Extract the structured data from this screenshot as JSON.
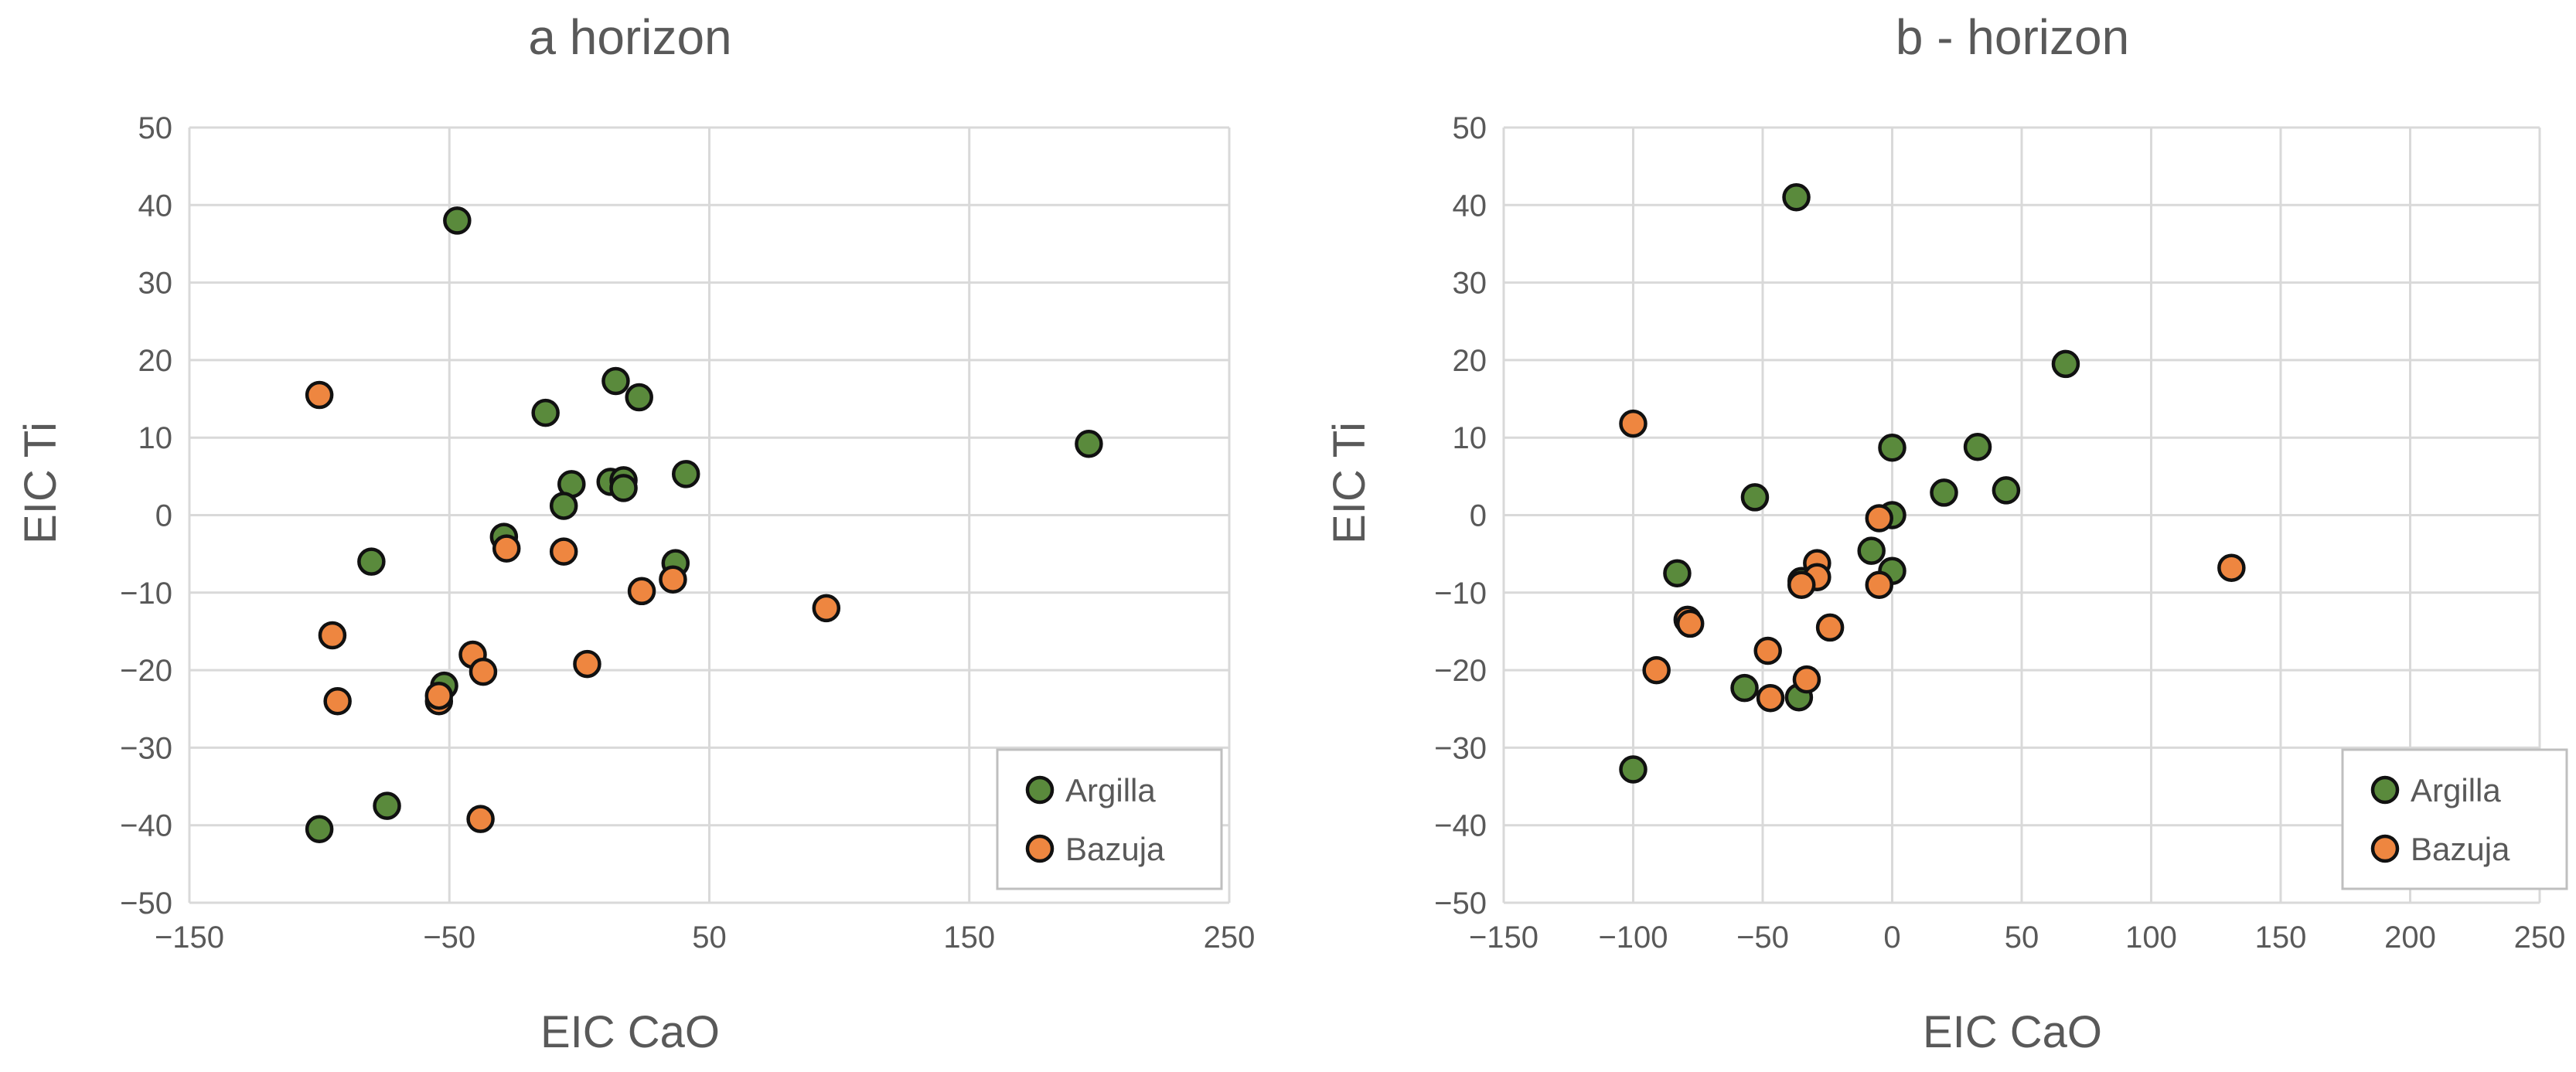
{
  "colors": {
    "argilla": "#5a8a3c",
    "bazuja": "#ee8640",
    "grid": "#d9d9d9",
    "text": "#595959"
  },
  "chart_data": [
    {
      "type": "scatter",
      "title": "a horizon",
      "xlabel": "EIC CaO",
      "ylabel": "EIC Ti",
      "xlim": [
        -150,
        250
      ],
      "ylim": [
        -50,
        50
      ],
      "xticks": [
        -150,
        -50,
        50,
        150,
        250
      ],
      "xtick_labels": [
        "−150",
        "−50",
        "50",
        "150",
        "250"
      ],
      "yticks": [
        50,
        40,
        30,
        20,
        10,
        0,
        -10,
        -20,
        -30,
        -40,
        -50
      ],
      "ytick_labels": [
        "50",
        "40",
        "30",
        "20",
        "10",
        "0",
        "−10",
        "−20",
        "−30",
        "−40",
        "−50"
      ],
      "legend_position": "bottom-right",
      "series": [
        {
          "name": "Argilla",
          "color": "#5a8a3c",
          "points": [
            [
              -47,
              38
            ],
            [
              -13,
              13.2
            ],
            [
              14,
              17.3
            ],
            [
              23,
              15.2
            ],
            [
              196,
              9.2
            ],
            [
              -3,
              4
            ],
            [
              12,
              4.3
            ],
            [
              17,
              4.5
            ],
            [
              17,
              3.5
            ],
            [
              41,
              5.3
            ],
            [
              -6,
              1.2
            ],
            [
              -29,
              -2.8
            ],
            [
              -80,
              -6
            ],
            [
              37,
              -6.2
            ],
            [
              -52,
              -22
            ],
            [
              -74,
              -37.5
            ],
            [
              -100,
              -40.5
            ]
          ]
        },
        {
          "name": "Bazuja",
          "color": "#ee8640",
          "points": [
            [
              -100,
              15.5
            ],
            [
              -95,
              -15.5
            ],
            [
              -93,
              -24
            ],
            [
              -54,
              -24
            ],
            [
              -54,
              -23.3
            ],
            [
              -28,
              -4.3
            ],
            [
              -6,
              -4.7
            ],
            [
              24,
              -9.8
            ],
            [
              36,
              -8.3
            ],
            [
              95,
              -12
            ],
            [
              -41,
              -18
            ],
            [
              -37,
              -20.2
            ],
            [
              3,
              -19.2
            ],
            [
              -38,
              -39.2
            ]
          ]
        }
      ]
    },
    {
      "type": "scatter",
      "title": "b - horizon",
      "xlabel": "EIC CaO",
      "ylabel": "EIC Ti",
      "xlim": [
        -150,
        250
      ],
      "ylim": [
        -50,
        50
      ],
      "xticks": [
        -150,
        -100,
        -50,
        0,
        50,
        100,
        150,
        200,
        250
      ],
      "xtick_labels": [
        "−150",
        "−100",
        "−50",
        "0",
        "50",
        "100",
        "150",
        "200",
        "250"
      ],
      "yticks": [
        50,
        40,
        30,
        20,
        10,
        0,
        -10,
        -20,
        -30,
        -40,
        -50
      ],
      "ytick_labels": [
        "50",
        "40",
        "30",
        "20",
        "10",
        "0",
        "−10",
        "−20",
        "−30",
        "−40",
        "−50"
      ],
      "legend_position": "bottom-right",
      "series": [
        {
          "name": "Argilla",
          "color": "#5a8a3c",
          "points": [
            [
              -37,
              41
            ],
            [
              67,
              19.5
            ],
            [
              0,
              8.7
            ],
            [
              33,
              8.8
            ],
            [
              20,
              2.9
            ],
            [
              44,
              3.2
            ],
            [
              -53,
              2.3
            ],
            [
              0,
              0
            ],
            [
              -8,
              -4.6
            ],
            [
              0,
              -7.2
            ],
            [
              -83,
              -7.5
            ],
            [
              -35,
              -8.5
            ],
            [
              -57,
              -22.3
            ],
            [
              -36,
              -23.5
            ],
            [
              -100,
              -32.8
            ]
          ]
        },
        {
          "name": "Bazuja",
          "color": "#ee8640",
          "points": [
            [
              -100,
              11.8
            ],
            [
              -5,
              -0.4
            ],
            [
              -29,
              -6.2
            ],
            [
              -29,
              -8
            ],
            [
              -35,
              -9
            ],
            [
              -5,
              -9
            ],
            [
              -79,
              -13.5
            ],
            [
              -78,
              -14
            ],
            [
              -48,
              -17.5
            ],
            [
              -24,
              -14.5
            ],
            [
              -91,
              -20
            ],
            [
              -33,
              -21.2
            ],
            [
              -47,
              -23.6
            ],
            [
              131,
              -6.8
            ]
          ]
        }
      ]
    }
  ]
}
